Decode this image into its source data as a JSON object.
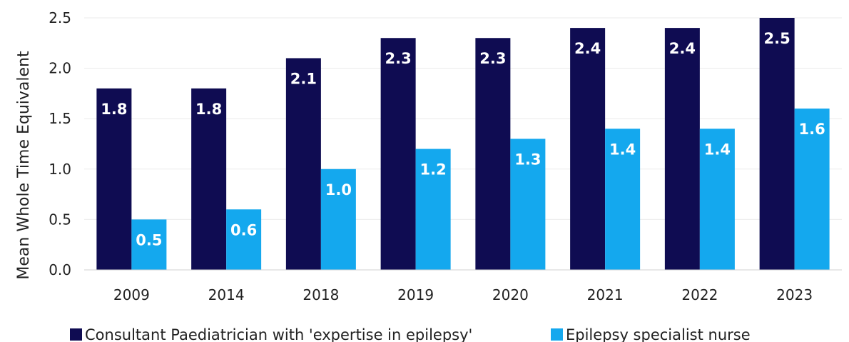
{
  "chart_data": {
    "type": "bar",
    "title": "",
    "xlabel": "",
    "ylabel": "Mean Whole Time Equivalent",
    "categories": [
      "2009",
      "2014",
      "2018",
      "2019",
      "2020",
      "2021",
      "2022",
      "2023"
    ],
    "series": [
      {
        "name": "Consultant Paediatrician with 'expertise in epilepsy'",
        "color": "#0f0c52",
        "values": [
          1.8,
          1.8,
          2.1,
          2.3,
          2.3,
          2.4,
          2.4,
          2.5
        ]
      },
      {
        "name": "Epilepsy specialist nurse",
        "color": "#14a8ee",
        "values": [
          0.5,
          0.6,
          1.0,
          1.2,
          1.3,
          1.4,
          1.4,
          1.6
        ]
      }
    ],
    "ylim": [
      0,
      2.5
    ],
    "yticks": [
      "0.0",
      "0.5",
      "1.0",
      "1.5",
      "2.0",
      "2.5"
    ],
    "grid": true,
    "legend_position": "bottom"
  }
}
